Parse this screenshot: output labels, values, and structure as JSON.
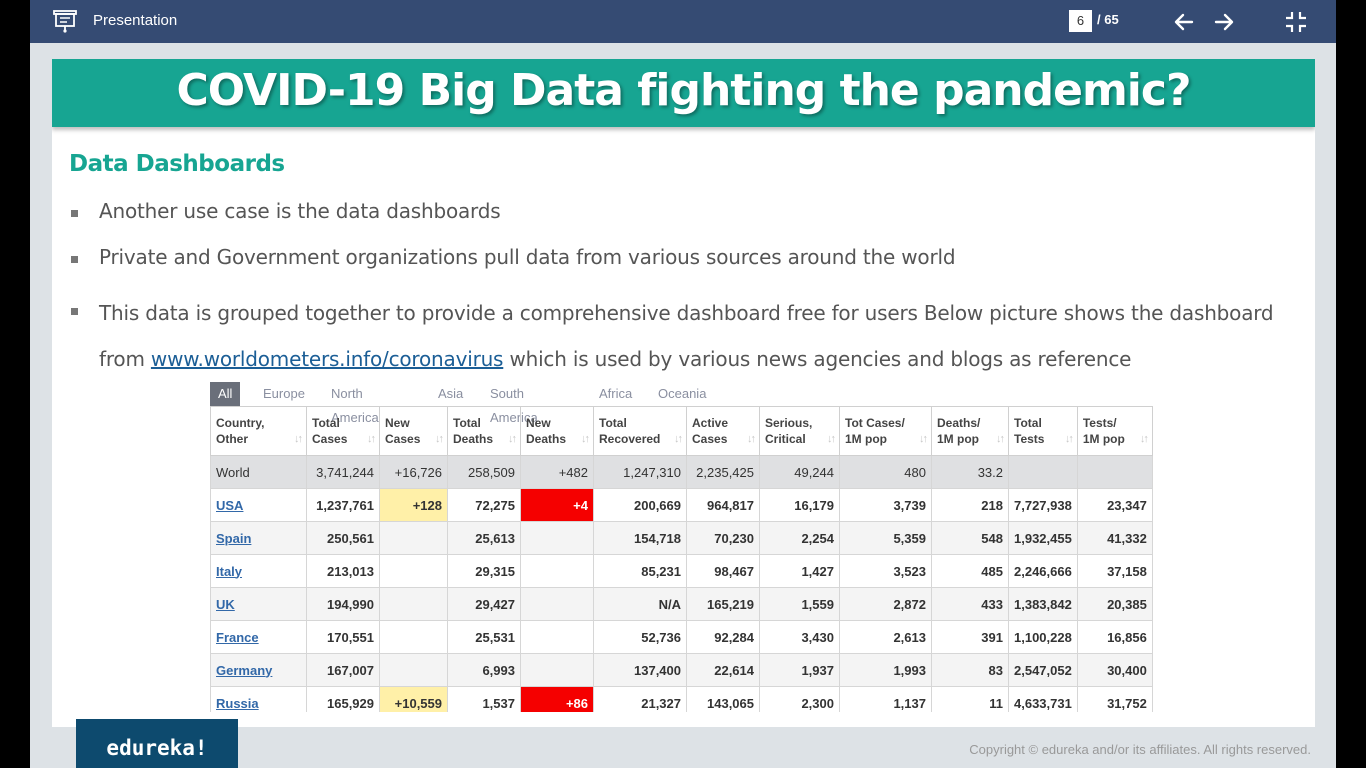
{
  "topbar": {
    "title": "Presentation",
    "current_page": "6",
    "page_total": "/ 65"
  },
  "slide": {
    "title": "COVID-19 Big Data fighting the pandemic?",
    "subtitle": "Data Dashboards",
    "bullets": [
      "Another use case is the data dashboards",
      "Private and Government organizations pull data from various sources around the world"
    ],
    "bullet3_pre": "This data is grouped together to provide a comprehensive dashboard free for users Below picture shows the dashboard from ",
    "bullet3_link": "www.worldometers.info/coronavirus",
    "bullet3_post": " which is used by various news agencies and blogs as reference"
  },
  "dashboard": {
    "tabs": [
      "All",
      "Europe",
      "North America",
      "Asia",
      "South America",
      "Africa",
      "Oceania"
    ],
    "headers": [
      [
        "Country,",
        "Other"
      ],
      [
        "Total",
        "Cases"
      ],
      [
        "New",
        "Cases"
      ],
      [
        "Total",
        "Deaths"
      ],
      [
        "New",
        "Deaths"
      ],
      [
        "Total",
        "Recovered"
      ],
      [
        "Active",
        "Cases"
      ],
      [
        "Serious,",
        "Critical"
      ],
      [
        "Tot Cases/",
        "1M pop"
      ],
      [
        "Deaths/",
        "1M pop"
      ],
      [
        "Total",
        "Tests"
      ],
      [
        "Tests/",
        "1M pop"
      ]
    ],
    "rows": [
      [
        "World",
        "3,741,244",
        "+16,726",
        "258,509",
        "+482",
        "1,247,310",
        "2,235,425",
        "49,244",
        "480",
        "33.2",
        "",
        ""
      ],
      [
        "USA",
        "1,237,761",
        "+128",
        "72,275",
        "+4",
        "200,669",
        "964,817",
        "16,179",
        "3,739",
        "218",
        "7,727,938",
        "23,347"
      ],
      [
        "Spain",
        "250,561",
        "",
        "25,613",
        "",
        "154,718",
        "70,230",
        "2,254",
        "5,359",
        "548",
        "1,932,455",
        "41,332"
      ],
      [
        "Italy",
        "213,013",
        "",
        "29,315",
        "",
        "85,231",
        "98,467",
        "1,427",
        "3,523",
        "485",
        "2,246,666",
        "37,158"
      ],
      [
        "UK",
        "194,990",
        "",
        "29,427",
        "",
        "N/A",
        "165,219",
        "1,559",
        "2,872",
        "433",
        "1,383,842",
        "20,385"
      ],
      [
        "France",
        "170,551",
        "",
        "25,531",
        "",
        "52,736",
        "92,284",
        "3,430",
        "2,613",
        "391",
        "1,100,228",
        "16,856"
      ],
      [
        "Germany",
        "167,007",
        "",
        "6,993",
        "",
        "137,400",
        "22,614",
        "1,937",
        "1,993",
        "83",
        "2,547,052",
        "30,400"
      ],
      [
        "Russia",
        "165,929",
        "+10,559",
        "1,537",
        "+86",
        "21,327",
        "143,065",
        "2,300",
        "1,137",
        "11",
        "4,633,731",
        "31,752"
      ]
    ]
  },
  "footer": {
    "logo": "edureka!",
    "copyright": "Copyright © edureka and/or its affiliates. All rights reserved."
  },
  "colors": {
    "topbar": "#354b73",
    "accent_teal": "#17a592",
    "new_cases_highlight": "#fff0a8",
    "new_deaths_highlight": "#f50000"
  },
  "icons": [
    "presentation-icon",
    "arrow-left-icon",
    "arrow-right-icon",
    "exit-fullscreen-icon"
  ]
}
